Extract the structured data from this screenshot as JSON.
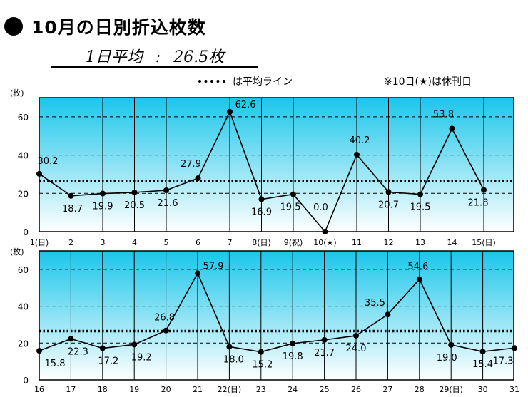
{
  "title": "10月の日別折込枚数",
  "average": {
    "label": "1日平均",
    "separator": ":",
    "value": "26.5枚"
  },
  "legend": {
    "label": "は平均ライン"
  },
  "note": "※10日(★)は休刊日",
  "colors": {
    "plot_top": "#1ac6ea",
    "plot_bottom": "#ffffff",
    "line": "#000000",
    "grid": "#000000"
  },
  "chart_data": [
    {
      "type": "line",
      "ylabel": "(枚)",
      "ylim": [
        0,
        70
      ],
      "yticks": [
        0,
        20,
        40,
        60
      ],
      "grid": true,
      "average_line": 26.5,
      "categories": [
        "1(日)",
        "2",
        "3",
        "4",
        "5",
        "6",
        "7",
        "8(日)",
        "9(祝)",
        "10(★)",
        "11",
        "12",
        "13",
        "14",
        "15(日)"
      ],
      "values": [
        30.2,
        18.7,
        19.9,
        20.5,
        21.6,
        27.9,
        62.6,
        16.9,
        19.5,
        0.0,
        40.2,
        20.7,
        19.5,
        53.8,
        21.8
      ],
      "labels": [
        "30.2",
        "18.7",
        "19.9",
        "20.5",
        "21.6",
        "27.9",
        "62.6",
        "16.9",
        "19.5",
        "0.0",
        "40.2",
        "20.7",
        "19.5",
        "53.8",
        "21.8"
      ]
    },
    {
      "type": "line",
      "ylabel": "(枚)",
      "ylim": [
        0,
        70
      ],
      "yticks": [
        0,
        20,
        40,
        60
      ],
      "grid": true,
      "average_line": 26.5,
      "categories": [
        "16",
        "17",
        "18",
        "19",
        "20",
        "21",
        "22(日)",
        "23",
        "24",
        "25",
        "26",
        "27",
        "28",
        "29(日)",
        "30",
        "31"
      ],
      "values": [
        15.8,
        22.3,
        17.2,
        19.2,
        26.8,
        57.9,
        18.0,
        15.2,
        19.8,
        21.7,
        24.0,
        35.5,
        54.6,
        19.0,
        15.4,
        17.3
      ],
      "labels": [
        "15.8",
        "22.3",
        "17.2",
        "19.2",
        "26.8",
        "57.9",
        "18.0",
        "15.2",
        "19.8",
        "21.7",
        "24.0",
        "35.5",
        "54.6",
        "19.0",
        "15.4",
        "17.3"
      ]
    }
  ]
}
